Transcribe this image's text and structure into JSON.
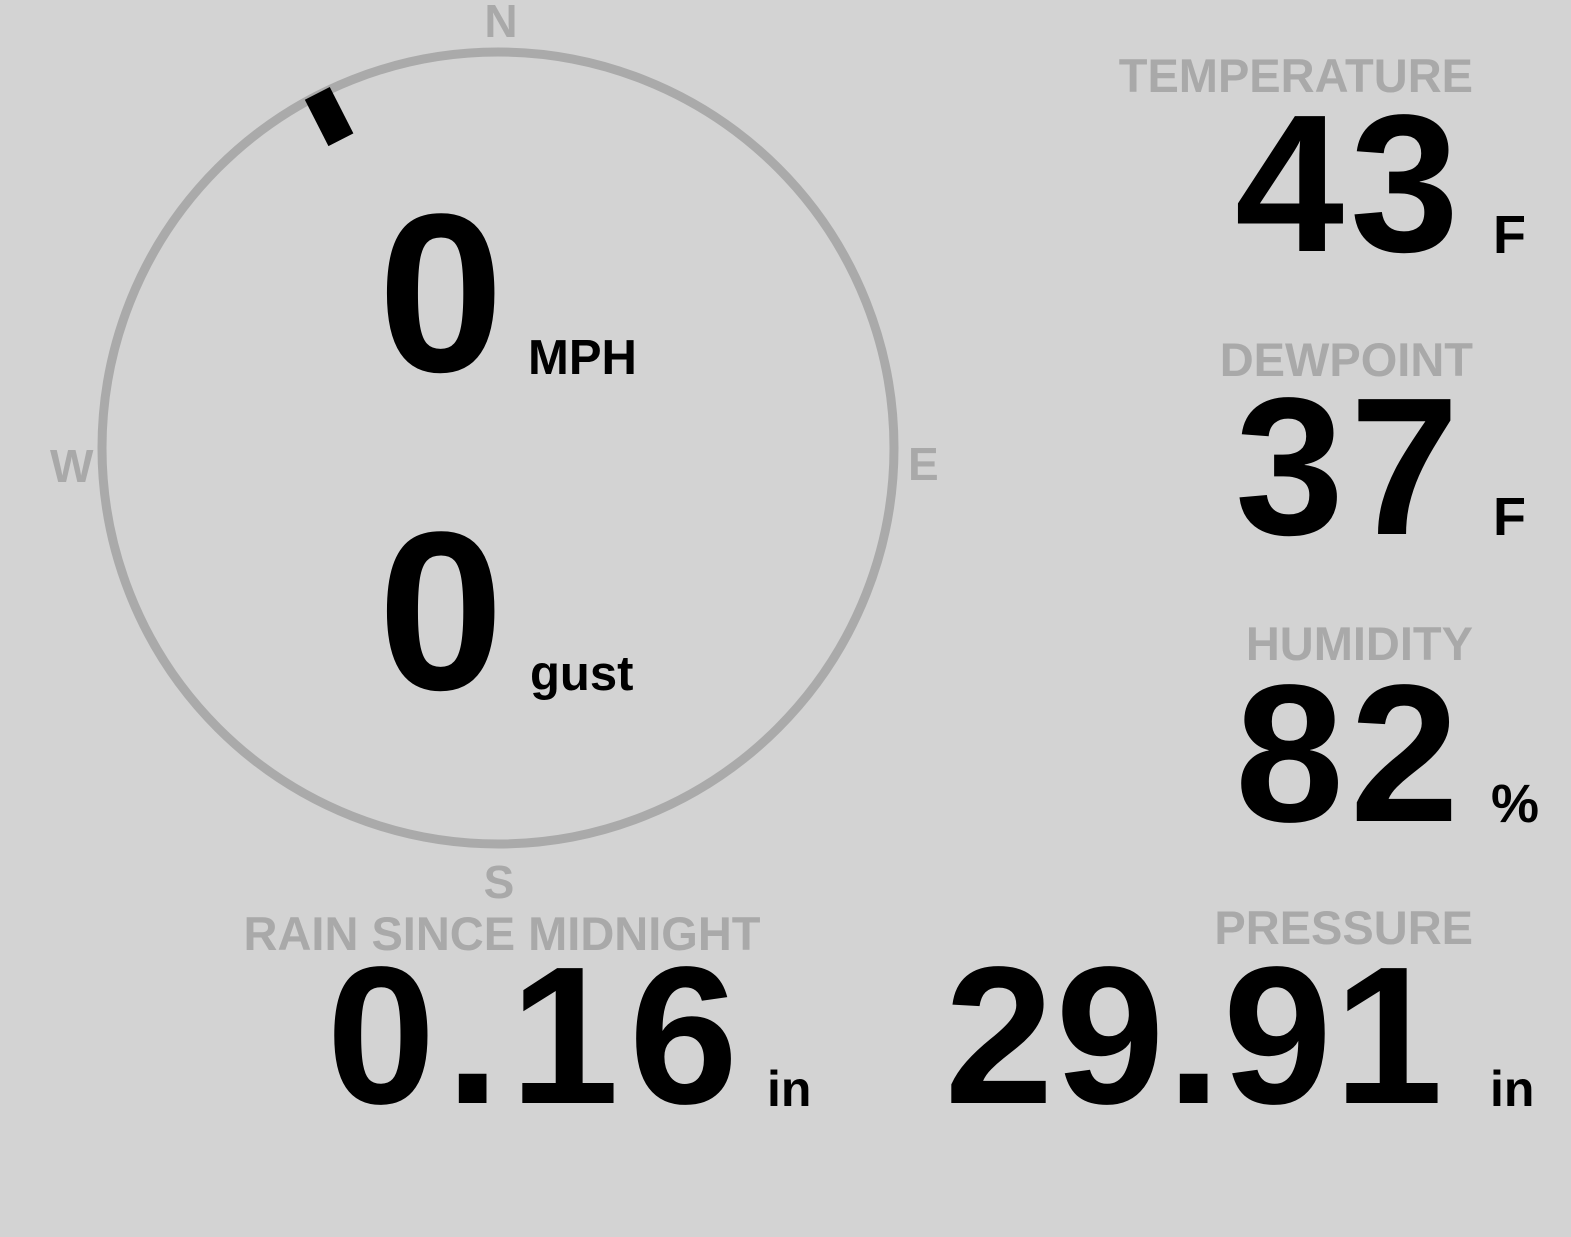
{
  "compass": {
    "north": "N",
    "south": "S",
    "east": "E",
    "west": "W",
    "wind_direction_deg": 333
  },
  "wind": {
    "speed": "0",
    "speed_unit": "MPH",
    "gust": "0",
    "gust_unit": "gust"
  },
  "temperature": {
    "label": "TEMPERATURE",
    "value": "43",
    "unit": "F"
  },
  "dewpoint": {
    "label": "DEWPOINT",
    "value": "37",
    "unit": "F"
  },
  "humidity": {
    "label": "HUMIDITY",
    "value": "82",
    "unit": "%"
  },
  "rain": {
    "label": "RAIN SINCE MIDNIGHT",
    "value": "0.16",
    "unit": "in"
  },
  "pressure": {
    "label": "PRESSURE",
    "value": "29.91",
    "unit": "in"
  },
  "colors": {
    "background": "#d3d3d3",
    "label": "#a9a9a9",
    "ring": "#aaaaaa",
    "value": "#000000"
  }
}
